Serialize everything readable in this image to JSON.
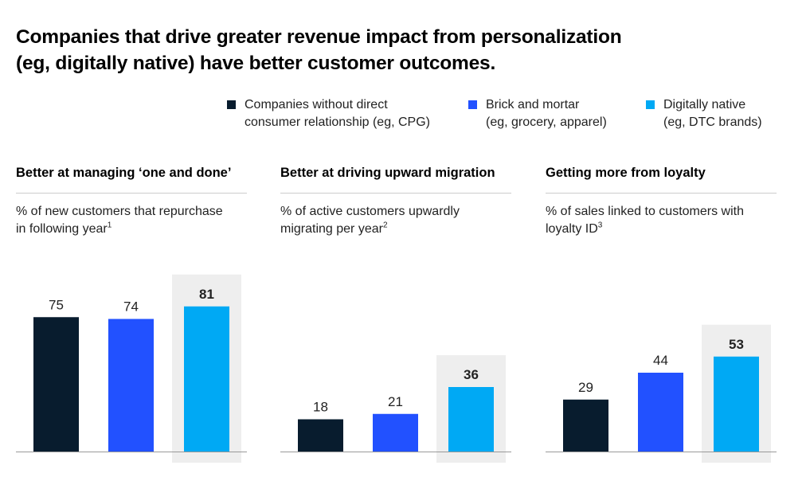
{
  "title_line1": "Companies that drive greater revenue impact from personalization",
  "title_line2": "(eg, digitally native) have better customer outcomes.",
  "colors": {
    "dark": "#081C2E",
    "blue": "#2251FF",
    "cyan": "#00A9F4",
    "highlight": "#EEEEEE",
    "baseline": "#999999"
  },
  "legend": [
    {
      "line1": "Companies without direct",
      "line2": "consumer relationship (eg, CPG)",
      "color": "#081C2E"
    },
    {
      "line1": "Brick and mortar",
      "line2": "(eg, grocery, apparel)",
      "color": "#2251FF"
    },
    {
      "line1": "Digitally native",
      "line2": "(eg, DTC brands)",
      "color": "#00A9F4"
    }
  ],
  "chart_data": [
    {
      "type": "bar",
      "title": "Better at managing ‘one and done’",
      "subtitle_line1": "% of new customers that repurchase",
      "subtitle_line2": "in following year",
      "footnote": "1",
      "categories": [
        "Companies without direct consumer relationship (eg, CPG)",
        "Brick and mortar (eg, grocery, apparel)",
        "Digitally native (eg, DTC brands)"
      ],
      "values": [
        75,
        74,
        81
      ],
      "labels": [
        "75",
        "74",
        "81"
      ],
      "highlighted": 2,
      "ylim": [
        0,
        81
      ]
    },
    {
      "type": "bar",
      "title": "Better at driving upward migration",
      "subtitle_line1": "% of active customers upwardly",
      "subtitle_line2": "migrating per year",
      "footnote": "2",
      "categories": [
        "Companies without direct consumer relationship (eg, CPG)",
        "Brick and mortar (eg, grocery, apparel)",
        "Digitally native (eg, DTC brands)"
      ],
      "values": [
        18,
        21,
        36
      ],
      "labels": [
        "18",
        "21",
        "36"
      ],
      "highlighted": 2,
      "ylim": [
        0,
        81
      ]
    },
    {
      "type": "bar",
      "title": "Getting more from loyalty",
      "subtitle_line1": "% of sales linked to customers with",
      "subtitle_line2": "loyalty ID",
      "footnote": "3",
      "categories": [
        "Companies without direct consumer relationship (eg, CPG)",
        "Brick and mortar (eg, grocery, apparel)",
        "Digitally native (eg, DTC brands)"
      ],
      "values": [
        29,
        44,
        53
      ],
      "labels": [
        "29",
        "44",
        "53"
      ],
      "highlighted": 2,
      "ylim": [
        0,
        81
      ]
    }
  ]
}
